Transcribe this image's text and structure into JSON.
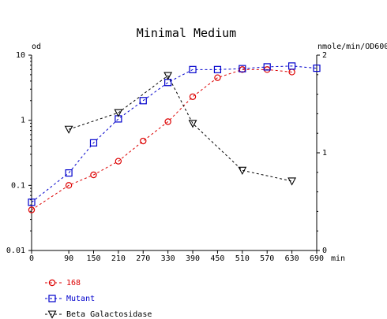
{
  "chart_data": {
    "type": "line",
    "title": "Minimal Medium",
    "xlabel": "min",
    "ylabel_left": "od",
    "ylabel_right": "nmole/min/OD600",
    "x_ticks": [
      0,
      90,
      150,
      210,
      270,
      330,
      390,
      450,
      510,
      570,
      630,
      690
    ],
    "x_range": [
      0,
      690
    ],
    "y_left_scale": "log",
    "y_left_range": [
      0.01,
      10
    ],
    "y_left_ticks": [
      "10",
      "1",
      "0.1",
      "0.01"
    ],
    "y_right_scale": "linear",
    "y_right_range": [
      0,
      2
    ],
    "y_right_ticks": [
      "2",
      "1",
      "0"
    ],
    "grid": false,
    "legend_position": "bottom-left",
    "series": [
      {
        "name": "168",
        "color": "#dd0000",
        "marker": "circle",
        "axis": "left",
        "x": [
          0,
          90,
          150,
          210,
          270,
          330,
          390,
          450,
          510,
          570,
          630
        ],
        "y": [
          0.042,
          0.1,
          0.145,
          0.235,
          0.48,
          0.95,
          2.3,
          4.5,
          6.0,
          6.0,
          5.5
        ]
      },
      {
        "name": "Mutant",
        "color": "#0000cc",
        "marker": "square",
        "axis": "left",
        "x": [
          0,
          90,
          150,
          210,
          270,
          330,
          390,
          450,
          510,
          570,
          630,
          690
        ],
        "y": [
          0.055,
          0.155,
          0.45,
          1.05,
          2.0,
          3.8,
          6.0,
          6.0,
          6.2,
          6.6,
          6.8,
          6.3
        ]
      },
      {
        "name": "Beta Galactosidase",
        "color": "#000000",
        "marker": "triangle-down",
        "axis": "right",
        "x": [
          90,
          210,
          330,
          390,
          510,
          630
        ],
        "y": [
          1.24,
          1.41,
          1.79,
          1.3,
          0.82,
          0.71
        ]
      }
    ]
  }
}
